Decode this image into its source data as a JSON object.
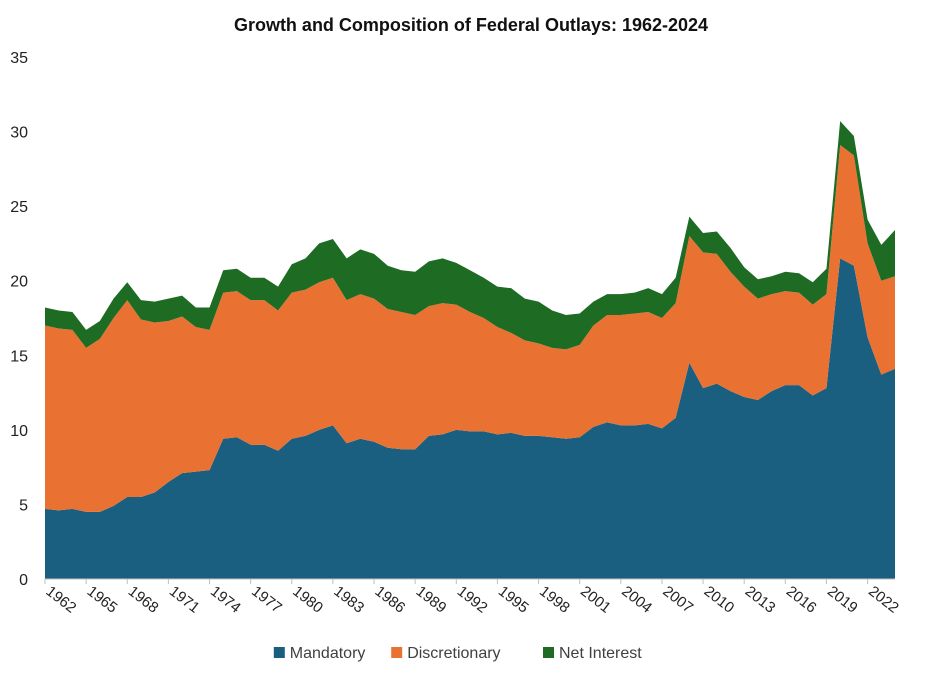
{
  "chart_data": {
    "type": "area",
    "stacked": true,
    "title": "Growth and Composition of Federal Outlays: 1962-2024",
    "xlabel": "",
    "ylabel": "",
    "ylim": [
      0,
      35
    ],
    "yticks": [
      0,
      5,
      10,
      15,
      20,
      25,
      30,
      35
    ],
    "grid": false,
    "legend_position": "bottom",
    "x": [
      1962,
      1963,
      1964,
      1965,
      1966,
      1967,
      1968,
      1969,
      1970,
      1971,
      1972,
      1973,
      1974,
      1975,
      1976,
      1977,
      1978,
      1979,
      1980,
      1981,
      1982,
      1983,
      1984,
      1985,
      1986,
      1987,
      1988,
      1989,
      1990,
      1991,
      1992,
      1993,
      1994,
      1995,
      1996,
      1997,
      1998,
      1999,
      2000,
      2001,
      2002,
      2003,
      2004,
      2005,
      2006,
      2007,
      2008,
      2009,
      2010,
      2011,
      2012,
      2013,
      2014,
      2015,
      2016,
      2017,
      2018,
      2019,
      2020,
      2021,
      2022,
      2023,
      2024
    ],
    "xtick_labels": [
      "1962",
      "1965",
      "1968",
      "1971",
      "1974",
      "1977",
      "1980",
      "1983",
      "1986",
      "1989",
      "1992",
      "1995",
      "1998",
      "2001",
      "2004",
      "2007",
      "2010",
      "2013",
      "2016",
      "2019",
      "2022"
    ],
    "series": [
      {
        "name": "Mandatory",
        "color": "#1a5e80",
        "values": [
          4.7,
          4.6,
          4.7,
          4.5,
          4.5,
          4.9,
          5.5,
          5.5,
          5.8,
          6.5,
          7.1,
          7.2,
          7.3,
          9.4,
          9.5,
          9.0,
          9.0,
          8.6,
          9.4,
          9.6,
          10.0,
          10.3,
          9.1,
          9.4,
          9.2,
          8.8,
          8.7,
          8.7,
          9.6,
          9.7,
          10.0,
          9.9,
          9.9,
          9.7,
          9.8,
          9.6,
          9.6,
          9.5,
          9.4,
          9.5,
          10.2,
          10.5,
          10.3,
          10.3,
          10.4,
          10.1,
          10.8,
          14.5,
          12.8,
          13.1,
          12.6,
          12.2,
          12.0,
          12.6,
          13.0,
          13.0,
          12.3,
          12.8,
          21.5,
          21.0,
          16.2,
          13.7,
          14.1
        ]
      },
      {
        "name": "Discretionary",
        "color": "#e97232",
        "values": [
          12.3,
          12.2,
          12.0,
          11.0,
          11.6,
          12.6,
          13.2,
          11.9,
          11.4,
          10.8,
          10.5,
          9.7,
          9.4,
          9.8,
          9.8,
          9.7,
          9.7,
          9.4,
          9.8,
          9.8,
          9.9,
          9.9,
          9.6,
          9.7,
          9.6,
          9.3,
          9.2,
          9.0,
          8.7,
          8.8,
          8.4,
          8.0,
          7.6,
          7.2,
          6.7,
          6.4,
          6.2,
          6.0,
          6.0,
          6.2,
          6.8,
          7.2,
          7.4,
          7.5,
          7.5,
          7.4,
          7.7,
          8.5,
          9.1,
          8.7,
          8.0,
          7.4,
          6.8,
          6.5,
          6.3,
          6.2,
          6.1,
          6.3,
          7.6,
          7.4,
          6.3,
          6.3,
          6.2
        ]
      },
      {
        "name": "Net Interest",
        "color": "#1e6b24",
        "values": [
          1.2,
          1.2,
          1.2,
          1.2,
          1.2,
          1.3,
          1.2,
          1.3,
          1.4,
          1.5,
          1.4,
          1.3,
          1.5,
          1.5,
          1.5,
          1.5,
          1.5,
          1.6,
          1.9,
          2.1,
          2.6,
          2.6,
          2.8,
          3.0,
          3.0,
          2.9,
          2.8,
          2.9,
          3.0,
          3.0,
          2.8,
          2.8,
          2.7,
          2.7,
          3.0,
          2.8,
          2.8,
          2.5,
          2.3,
          2.1,
          1.6,
          1.4,
          1.4,
          1.4,
          1.6,
          1.6,
          1.7,
          1.3,
          1.3,
          1.5,
          1.6,
          1.3,
          1.3,
          1.2,
          1.3,
          1.3,
          1.5,
          1.7,
          1.6,
          1.3,
          1.6,
          2.4,
          3.1
        ]
      }
    ]
  }
}
